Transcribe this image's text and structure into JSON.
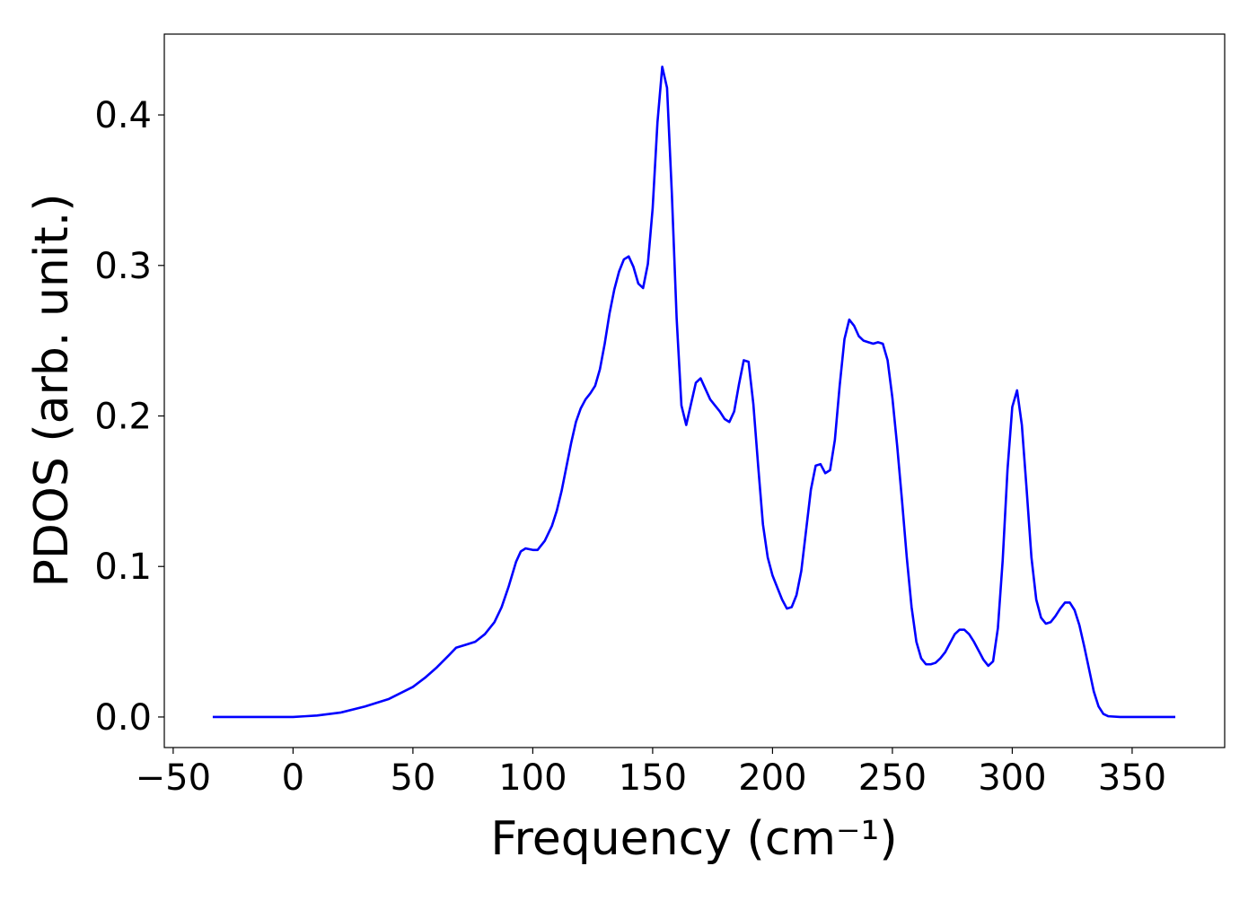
{
  "chart_data": {
    "type": "line",
    "x_label": "Frequency (cm⁻¹)",
    "y_label": "PDOS (arb. unit.)",
    "xlim": [
      -53.7,
      388.6
    ],
    "ylim": [
      -0.0203,
      0.4537
    ],
    "xticks": [
      {
        "value": -50,
        "label": "−50"
      },
      0,
      50,
      100,
      150,
      200,
      250,
      300,
      350
    ],
    "yticks": [
      {
        "value": 0,
        "label": "0.0"
      },
      0.1,
      0.2,
      0.3,
      0.4
    ],
    "grid": false,
    "x": [
      -33.5,
      0,
      5,
      10,
      20,
      30,
      40,
      50,
      55,
      60,
      65,
      68,
      72,
      76,
      80,
      84,
      87,
      90,
      93,
      95,
      97,
      100,
      102,
      105,
      108,
      110,
      112,
      114,
      116,
      118,
      120,
      122,
      124,
      126,
      128,
      130,
      132,
      134,
      136,
      138,
      140,
      142,
      144,
      146,
      148,
      150,
      152,
      154,
      156,
      158,
      160,
      162,
      164,
      166,
      168,
      170,
      172,
      174,
      176,
      178,
      180,
      182,
      184,
      186,
      188,
      190,
      192,
      194,
      196,
      198,
      200,
      202,
      204,
      206,
      208,
      210,
      212,
      214,
      216,
      218,
      220,
      222,
      224,
      226,
      228,
      230,
      232,
      234,
      236,
      238,
      240,
      242,
      244,
      246,
      248,
      250,
      252,
      254,
      256,
      258,
      260,
      262,
      264,
      266,
      268,
      270,
      272,
      274,
      276,
      278,
      280,
      282,
      284,
      286,
      288,
      290,
      292,
      294,
      296,
      298,
      300,
      302,
      304,
      306,
      308,
      310,
      312,
      314,
      316,
      318,
      320,
      322,
      324,
      326,
      328,
      330,
      332,
      334,
      336,
      338,
      340,
      345,
      368
    ],
    "series": [
      {
        "color": "#0000ff",
        "values": [
          0,
          0,
          0.0005,
          0.001,
          0.003,
          0.007,
          0.012,
          0.02,
          0.026,
          0.033,
          0.041,
          0.046,
          0.048,
          0.05,
          0.055,
          0.063,
          0.073,
          0.087,
          0.103,
          0.11,
          0.112,
          0.111,
          0.111,
          0.117,
          0.127,
          0.137,
          0.15,
          0.166,
          0.182,
          0.196,
          0.205,
          0.211,
          0.215,
          0.22,
          0.231,
          0.248,
          0.268,
          0.284,
          0.296,
          0.304,
          0.306,
          0.299,
          0.288,
          0.285,
          0.301,
          0.338,
          0.395,
          0.432,
          0.418,
          0.348,
          0.265,
          0.207,
          0.194,
          0.208,
          0.222,
          0.225,
          0.218,
          0.211,
          0.207,
          0.203,
          0.198,
          0.196,
          0.203,
          0.221,
          0.237,
          0.236,
          0.208,
          0.167,
          0.128,
          0.106,
          0.094,
          0.086,
          0.078,
          0.072,
          0.073,
          0.081,
          0.097,
          0.124,
          0.151,
          0.167,
          0.168,
          0.162,
          0.164,
          0.184,
          0.22,
          0.251,
          0.264,
          0.26,
          0.253,
          0.25,
          0.249,
          0.248,
          0.249,
          0.248,
          0.237,
          0.212,
          0.18,
          0.144,
          0.106,
          0.073,
          0.05,
          0.039,
          0.035,
          0.035,
          0.036,
          0.039,
          0.043,
          0.049,
          0.055,
          0.058,
          0.058,
          0.055,
          0.05,
          0.044,
          0.038,
          0.034,
          0.037,
          0.059,
          0.104,
          0.164,
          0.206,
          0.217,
          0.194,
          0.151,
          0.106,
          0.078,
          0.066,
          0.062,
          0.063,
          0.067,
          0.072,
          0.076,
          0.076,
          0.071,
          0.061,
          0.047,
          0.032,
          0.017,
          0.007,
          0.002,
          0.0005,
          0,
          0
        ]
      }
    ]
  }
}
